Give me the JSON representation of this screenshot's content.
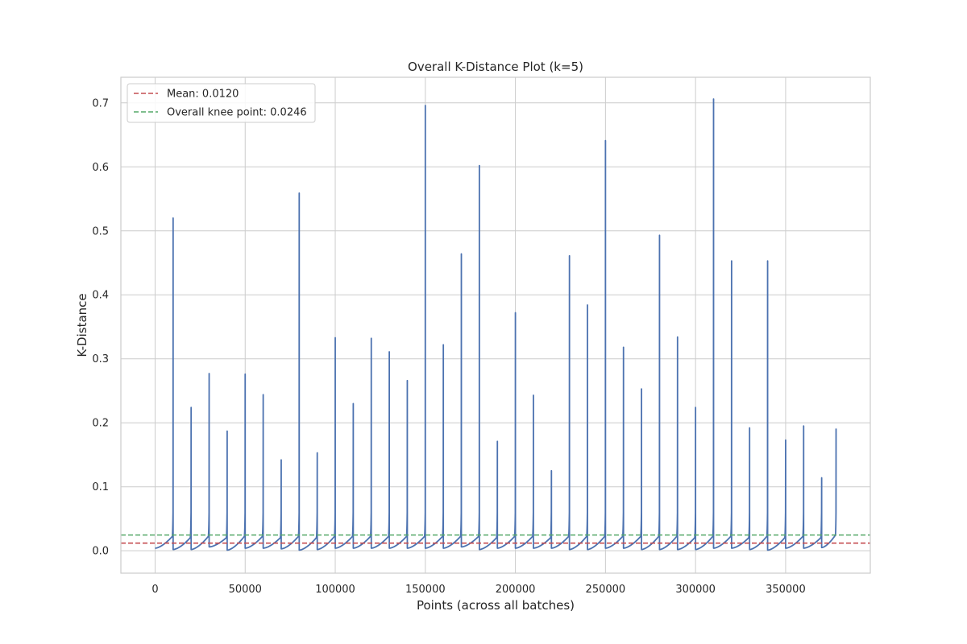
{
  "chart_data": {
    "type": "line",
    "title": "Overall K-Distance Plot (k=5)",
    "xlabel": "Points (across all batches)",
    "ylabel": "K-Distance",
    "xlim": [
      -19000,
      397000
    ],
    "ylim": [
      -0.035,
      0.74
    ],
    "x_ticks": [
      0,
      50000,
      100000,
      150000,
      200000,
      250000,
      300000,
      350000
    ],
    "y_ticks": [
      0.0,
      0.1,
      0.2,
      0.3,
      0.4,
      0.5,
      0.6,
      0.7
    ],
    "x_tick_labels": [
      "0",
      "50000",
      "100000",
      "150000",
      "200000",
      "250000",
      "300000",
      "350000"
    ],
    "y_tick_labels": [
      "0.0",
      "0.1",
      "0.2",
      "0.3",
      "0.4",
      "0.5",
      "0.6",
      "0.7"
    ],
    "grid": true,
    "legend_position": "top-left",
    "batch_size": 10000,
    "total_points": 378000,
    "batches": [
      {
        "start": 0,
        "base": 0.004,
        "end": 0.022,
        "peak": 0.52
      },
      {
        "start": 10000,
        "base": 0.002,
        "end": 0.02,
        "peak": 0.224
      },
      {
        "start": 20000,
        "base": 0.002,
        "end": 0.022,
        "peak": 0.277
      },
      {
        "start": 30000,
        "base": 0.006,
        "end": 0.02,
        "peak": 0.187
      },
      {
        "start": 40000,
        "base": 0.001,
        "end": 0.022,
        "peak": 0.276
      },
      {
        "start": 50000,
        "base": 0.004,
        "end": 0.022,
        "peak": 0.244
      },
      {
        "start": 60000,
        "base": 0.004,
        "end": 0.02,
        "peak": 0.142
      },
      {
        "start": 70000,
        "base": 0.003,
        "end": 0.022,
        "peak": 0.559
      },
      {
        "start": 80000,
        "base": 0.001,
        "end": 0.02,
        "peak": 0.153
      },
      {
        "start": 90000,
        "base": 0.002,
        "end": 0.022,
        "peak": 0.333
      },
      {
        "start": 100000,
        "base": 0.004,
        "end": 0.022,
        "peak": 0.23
      },
      {
        "start": 110000,
        "base": 0.004,
        "end": 0.022,
        "peak": 0.332
      },
      {
        "start": 120000,
        "base": 0.004,
        "end": 0.022,
        "peak": 0.311
      },
      {
        "start": 130000,
        "base": 0.004,
        "end": 0.022,
        "peak": 0.266
      },
      {
        "start": 140000,
        "base": 0.004,
        "end": 0.022,
        "peak": 0.696
      },
      {
        "start": 150000,
        "base": 0.004,
        "end": 0.022,
        "peak": 0.322
      },
      {
        "start": 160000,
        "base": 0.004,
        "end": 0.022,
        "peak": 0.464
      },
      {
        "start": 170000,
        "base": 0.006,
        "end": 0.022,
        "peak": 0.602
      },
      {
        "start": 180000,
        "base": 0.002,
        "end": 0.02,
        "peak": 0.171
      },
      {
        "start": 190000,
        "base": 0.004,
        "end": 0.022,
        "peak": 0.372
      },
      {
        "start": 200000,
        "base": 0.004,
        "end": 0.022,
        "peak": 0.243
      },
      {
        "start": 210000,
        "base": 0.004,
        "end": 0.02,
        "peak": 0.125
      },
      {
        "start": 220000,
        "base": 0.004,
        "end": 0.022,
        "peak": 0.461
      },
      {
        "start": 230000,
        "base": 0.002,
        "end": 0.022,
        "peak": 0.384
      },
      {
        "start": 240000,
        "base": 0.002,
        "end": 0.022,
        "peak": 0.641
      },
      {
        "start": 250000,
        "base": 0.004,
        "end": 0.022,
        "peak": 0.318
      },
      {
        "start": 260000,
        "base": 0.004,
        "end": 0.022,
        "peak": 0.253
      },
      {
        "start": 270000,
        "base": 0.002,
        "end": 0.022,
        "peak": 0.493
      },
      {
        "start": 280000,
        "base": 0.002,
        "end": 0.022,
        "peak": 0.334
      },
      {
        "start": 290000,
        "base": 0.002,
        "end": 0.02,
        "peak": 0.224
      },
      {
        "start": 300000,
        "base": 0.002,
        "end": 0.022,
        "peak": 0.706
      },
      {
        "start": 310000,
        "base": 0.004,
        "end": 0.022,
        "peak": 0.453
      },
      {
        "start": 320000,
        "base": 0.004,
        "end": 0.02,
        "peak": 0.192
      },
      {
        "start": 330000,
        "base": 0.002,
        "end": 0.022,
        "peak": 0.453
      },
      {
        "start": 340000,
        "base": 0.001,
        "end": 0.02,
        "peak": 0.173
      },
      {
        "start": 350000,
        "base": 0.004,
        "end": 0.022,
        "peak": 0.195
      },
      {
        "start": 360000,
        "base": 0.004,
        "end": 0.02,
        "peak": 0.114
      },
      {
        "start": 370000,
        "base": 0.005,
        "end": 0.024,
        "peak": 0.191
      }
    ],
    "hlines": [
      {
        "label": "Mean: 0.0120",
        "value": 0.012,
        "color": "#c44e52",
        "style": "dashed"
      },
      {
        "label": "Overall knee point: 0.0246",
        "value": 0.0246,
        "color": "#55a868",
        "style": "dashed"
      }
    ],
    "line_color": "#4c72b0"
  }
}
